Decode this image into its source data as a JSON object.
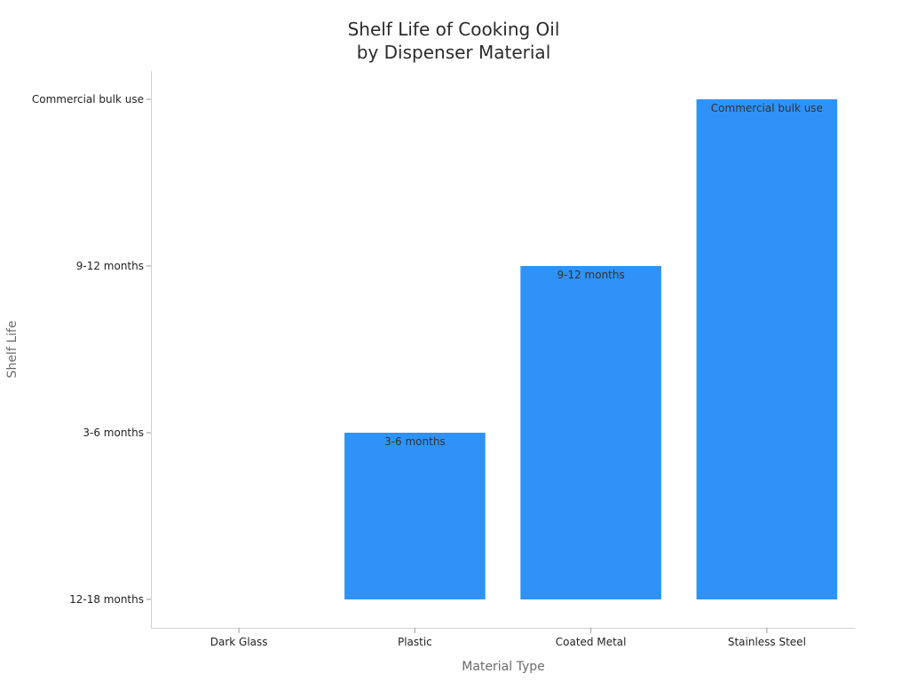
{
  "chart_data": {
    "type": "bar",
    "title_lines": [
      "Shelf Life of Cooking Oil",
      "by Dispenser Material"
    ],
    "xlabel": "Material Type",
    "ylabel": "Shelf Life",
    "categories": [
      "Dark Glass",
      "Plastic",
      "Coated Metal",
      "Stainless Steel"
    ],
    "y_categories": [
      "12-18 months",
      "3-6 months",
      "9-12 months",
      "Commercial bulk use"
    ],
    "values": [
      0,
      1,
      2,
      3
    ],
    "data_labels": [
      "",
      "3-6 months",
      "9-12 months",
      "Commercial bulk use"
    ],
    "ylim": [
      0,
      3
    ],
    "grid": false,
    "legend": "none",
    "bar_color": "#2f92f7"
  }
}
